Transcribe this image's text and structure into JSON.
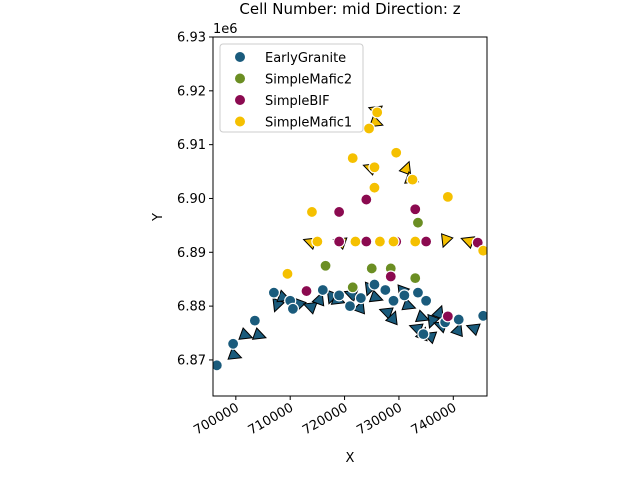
{
  "chart_data": {
    "type": "scatter",
    "title": "Cell Number: mid Direction: z",
    "xlabel": "X",
    "ylabel": "Y",
    "y_offset_label": "1e6",
    "xlim": [
      695800,
      746200
    ],
    "ylim": [
      6.8633,
      6.93
    ],
    "x_ticks": [
      700000,
      710000,
      720000,
      730000,
      740000
    ],
    "x_tick_labels": [
      "700000",
      "710000",
      "720000",
      "730000",
      "740000"
    ],
    "y_ticks": [
      6.87,
      6.88,
      6.89,
      6.9,
      6.91,
      6.92,
      6.93
    ],
    "y_tick_labels": [
      "6.87",
      "6.88",
      "6.89",
      "6.90",
      "6.91",
      "6.92",
      "6.93"
    ],
    "x_tick_rotation_deg": 30,
    "legend_position": "top-left",
    "grid": false,
    "background_field": {
      "x_range": [
        704000,
        746200
      ],
      "y_range": [
        6.8633,
        6.9268
      ],
      "colormap": "viridis",
      "peak": [
        727000,
        6.895
      ]
    },
    "series": [
      {
        "name": "EarlyGranite",
        "color": "#1a5b7c",
        "points": [
          [
            696500,
            6.869
          ],
          [
            699500,
            6.873
          ],
          [
            703500,
            6.8773
          ],
          [
            707000,
            6.8825
          ],
          [
            710000,
            6.881
          ],
          [
            710500,
            6.8795
          ],
          [
            716000,
            6.883
          ],
          [
            719000,
            6.882
          ],
          [
            721000,
            6.88
          ],
          [
            723000,
            6.8815
          ],
          [
            725500,
            6.884
          ],
          [
            727500,
            6.883
          ],
          [
            729000,
            6.881
          ],
          [
            731000,
            6.882
          ],
          [
            733500,
            6.8825
          ],
          [
            735000,
            6.881
          ],
          [
            741000,
            6.8775
          ],
          [
            745500,
            6.8782
          ],
          [
            734500,
            6.8748
          ],
          [
            738500,
            6.877
          ]
        ]
      },
      {
        "name": "SimpleMafic2",
        "color": "#6b8e23",
        "points": [
          [
            716500,
            6.8875
          ],
          [
            721500,
            6.8835
          ],
          [
            725000,
            6.887
          ],
          [
            728500,
            6.887
          ],
          [
            733000,
            6.8852
          ],
          [
            733500,
            6.8955
          ]
        ]
      },
      {
        "name": "SimpleBIF",
        "color": "#8b0a50",
        "points": [
          [
            713000,
            6.8828
          ],
          [
            719000,
            6.8975
          ],
          [
            719000,
            6.892
          ],
          [
            724000,
            6.892
          ],
          [
            724000,
            6.8998
          ],
          [
            729500,
            6.892
          ],
          [
            733000,
            6.898
          ],
          [
            735000,
            6.892
          ],
          [
            739000,
            6.8781
          ],
          [
            744500,
            6.8918
          ],
          [
            728500,
            6.8855
          ]
        ]
      },
      {
        "name": "SimpleMafic1",
        "color": "#f5c000",
        "points": [
          [
            709500,
            6.886
          ],
          [
            714000,
            6.8975
          ],
          [
            715000,
            6.892
          ],
          [
            721500,
            6.9075
          ],
          [
            722000,
            6.892
          ],
          [
            724500,
            6.913
          ],
          [
            726000,
            6.916
          ],
          [
            725500,
            6.902
          ],
          [
            725500,
            6.9058
          ],
          [
            729500,
            6.9085
          ],
          [
            729000,
            6.892
          ],
          [
            732500,
            6.9035
          ],
          [
            733000,
            6.892
          ],
          [
            739000,
            6.9003
          ],
          [
            745500,
            6.8903
          ],
          [
            726500,
            6.892
          ]
        ]
      }
    ],
    "orientation_markers": [
      [
        704500,
        6.8745,
        0
      ],
      [
        700000,
        6.8708,
        0
      ],
      [
        707500,
        6.88,
        1
      ],
      [
        709000,
        6.8815,
        0
      ],
      [
        711500,
        6.88,
        1
      ],
      [
        713500,
        6.88,
        2
      ],
      [
        715500,
        6.8815,
        3
      ],
      [
        717500,
        6.8815,
        1
      ],
      [
        719000,
        6.881,
        0
      ],
      [
        721000,
        6.8823,
        2
      ],
      [
        723000,
        6.88,
        3
      ],
      [
        724500,
        6.883,
        1
      ],
      [
        726000,
        6.8815,
        0
      ],
      [
        727500,
        6.879,
        2
      ],
      [
        729000,
        6.878,
        3
      ],
      [
        730500,
        6.8825,
        1
      ],
      [
        732000,
        6.88,
        0
      ],
      [
        733000,
        6.876,
        2
      ],
      [
        734500,
        6.875,
        3
      ],
      [
        736000,
        6.877,
        1
      ],
      [
        737500,
        6.8765,
        2
      ],
      [
        741000,
        6.8758,
        3
      ],
      [
        743500,
        6.876,
        2
      ],
      [
        702000,
        6.8745,
        0
      ],
      [
        713500,
        6.892,
        2
      ],
      [
        719000,
        6.892,
        2
      ],
      [
        724500,
        6.9058,
        2
      ],
      [
        725500,
        6.9165,
        2
      ],
      [
        726000,
        6.914,
        0
      ],
      [
        731500,
        6.9058,
        3
      ],
      [
        732500,
        6.9035,
        0
      ],
      [
        738500,
        6.892,
        1
      ],
      [
        742500,
        6.8922,
        2
      ],
      [
        734500,
        6.8778,
        0
      ],
      [
        735500,
        6.8745,
        2
      ],
      [
        737500,
        6.879,
        3
      ]
    ]
  }
}
